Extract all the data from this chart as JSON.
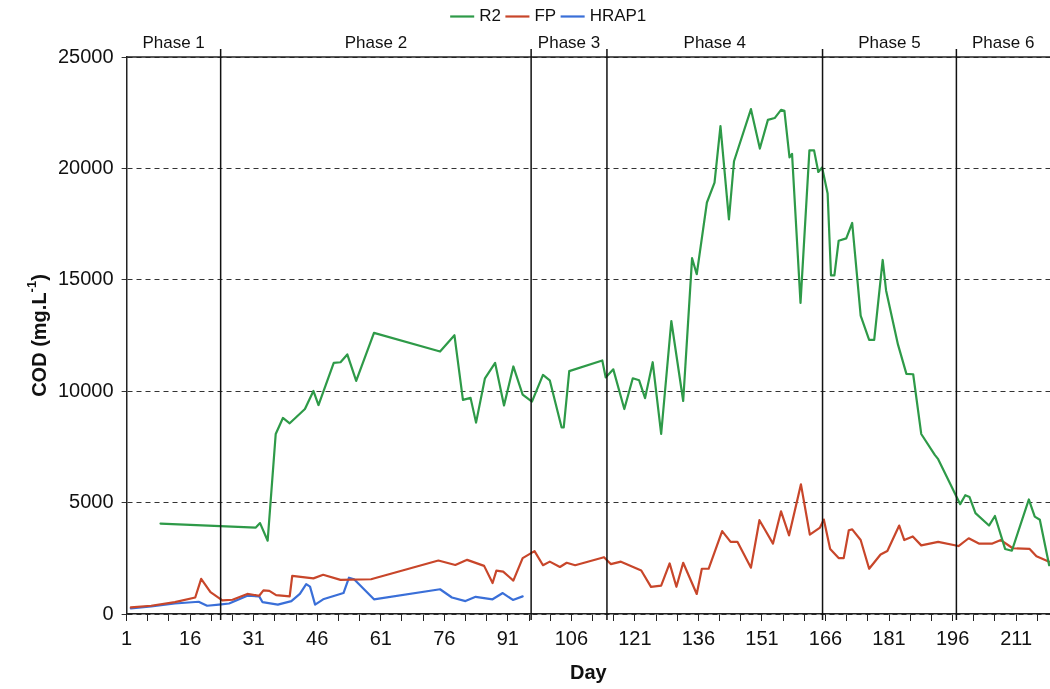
{
  "chart_data": {
    "type": "line",
    "xlabel": "Day",
    "ylabel": "COD (mg.L$^{-1}$)",
    "xlim": [
      1,
      219
    ],
    "ylim": [
      0,
      25000
    ],
    "yticks": [
      0,
      5000,
      10000,
      15000,
      20000,
      25000
    ],
    "xticks": [
      1,
      {
        "value": 6,
        "label": null
      },
      {
        "value": 11,
        "label": null
      },
      16,
      {
        "value": 21,
        "label": null
      },
      {
        "value": 26,
        "label": null
      },
      31,
      {
        "value": 36,
        "label": null
      },
      {
        "value": 41,
        "label": null
      },
      46,
      {
        "value": 51,
        "label": null
      },
      {
        "value": 56,
        "label": null
      },
      61,
      {
        "value": 66,
        "label": null
      },
      {
        "value": 71,
        "label": null
      },
      76,
      {
        "value": 81,
        "label": null
      },
      {
        "value": 86,
        "label": null
      },
      91,
      {
        "value": 96,
        "label": null
      },
      {
        "value": 101,
        "label": null
      },
      106,
      {
        "value": 111,
        "label": null
      },
      {
        "value": 116,
        "label": null
      },
      121,
      {
        "value": 126,
        "label": null
      },
      {
        "value": 131,
        "label": null
      },
      136,
      {
        "value": 141,
        "label": null
      },
      {
        "value": 146,
        "label": null
      },
      151,
      {
        "value": 156,
        "label": null
      },
      {
        "value": 161,
        "label": null
      },
      166,
      {
        "value": 171,
        "label": null
      },
      {
        "value": 176,
        "label": null
      },
      181,
      {
        "value": 186,
        "label": null
      },
      {
        "value": 191,
        "label": null
      },
      196,
      {
        "value": 201,
        "label": null
      },
      {
        "value": 206,
        "label": null
      },
      211,
      {
        "value": 216,
        "label": null
      }
    ],
    "grid": "y",
    "legend": "top",
    "marker": "none",
    "line_style": "solid",
    "ref_lines": [
      {
        "axis": "x",
        "value": 23.2
      },
      {
        "axis": "x",
        "value": 96.5
      },
      {
        "axis": "x",
        "value": 114.4
      },
      {
        "axis": "x",
        "value": 165.3
      },
      {
        "axis": "x",
        "value": 196.9
      }
    ],
    "annotations": [
      "Phase 1",
      "Phase 2",
      "Phase 3",
      "Phase 4",
      "Phase 5",
      "Phase 6"
    ],
    "series": [
      {
        "name": "R2",
        "color": "#2e9a48",
        "x": [
          9,
          31.5,
          32.5,
          34.3,
          36.2,
          37.9,
          39.5,
          43.1,
          45.1,
          46.3,
          49.9,
          51.5,
          53.1,
          55.2,
          59.4,
          75,
          78.4,
          80.4,
          82.2,
          83.5,
          85.6,
          88,
          90.1,
          92.3,
          94.5,
          96.7,
          99.3,
          100.9,
          103.7,
          104.2,
          105.5,
          113.3,
          114.1,
          115.9,
          118.5,
          120.5,
          122,
          123.4,
          125.2,
          127.2,
          129.6,
          132.4,
          134.5,
          135.6,
          138,
          139.8,
          141.2,
          143.2,
          144.4,
          148.4,
          150.5,
          152.4,
          154,
          155.5,
          156.3,
          157.5,
          158.1,
          160.1,
          162.2,
          163.3,
          164.3,
          165.2,
          166.5,
          167.3,
          168.1,
          169.1,
          170.9,
          172.3,
          174.3,
          176.3,
          177.5,
          179.5,
          180.3,
          183.1,
          185.1,
          186.7,
          188.6,
          191.8,
          192.6,
          197.8,
          199,
          200,
          201.4,
          204.6,
          206,
          208.4,
          210,
          214,
          215.4,
          216.6,
          218.8
        ],
        "values": [
          4060,
          3880,
          4080,
          3290,
          8080,
          8800,
          8560,
          9200,
          10010,
          9380,
          11270,
          11300,
          11650,
          10460,
          12620,
          11780,
          12510,
          9610,
          9700,
          8590,
          10580,
          11270,
          9360,
          11110,
          9850,
          9530,
          10730,
          10490,
          8370,
          8370,
          10900,
          11380,
          10620,
          10980,
          9200,
          10580,
          10490,
          9690,
          11300,
          8080,
          13150,
          9560,
          15970,
          15250,
          18470,
          19360,
          21900,
          17710,
          20320,
          22660,
          20890,
          22180,
          22260,
          22630,
          22580,
          20490,
          20650,
          13960,
          20810,
          20810,
          19840,
          20040,
          18870,
          15200,
          15200,
          16750,
          16860,
          17550,
          13390,
          12300,
          12300,
          15890,
          14520,
          12100,
          10780,
          10760,
          8080,
          7140,
          6950,
          4930,
          5330,
          5250,
          4530,
          3970,
          4400,
          2920,
          2840,
          5140,
          4370,
          4230,
          2190
        ]
      },
      {
        "name": "FP",
        "color": "#c8462a",
        "x": [
          2,
          6.8,
          12.4,
          17.2,
          18.6,
          20.8,
          23.6,
          26,
          29.5,
          32.3,
          33.3,
          34.7,
          36.3,
          39.5,
          40.1,
          45.1,
          47.4,
          51.5,
          58.7,
          74.6,
          78.6,
          81.4,
          85.4,
          87.4,
          88.3,
          89.9,
          92.3,
          94.5,
          97.3,
          99.3,
          100.9,
          103.3,
          104.9,
          106.9,
          113.7,
          115.3,
          117.7,
          122.5,
          124.8,
          127.2,
          129.2,
          130.8,
          132.4,
          135.6,
          136.8,
          138.4,
          141.6,
          143.6,
          145.2,
          148.4,
          150.4,
          153.6,
          155.5,
          157.4,
          160.2,
          162.3,
          164.7,
          165.6,
          167.1,
          169.1,
          170.3,
          171.5,
          172.3,
          174.3,
          176.3,
          179,
          180.6,
          183.4,
          184.6,
          186.6,
          188.6,
          192.6,
          197.4,
          199.8,
          202.2,
          205.4,
          207.4,
          210.2,
          214.2,
          215.8,
          218.8
        ],
        "values": [
          300,
          370,
          530,
          740,
          1580,
          980,
          610,
          640,
          900,
          820,
          1060,
          1040,
          850,
          790,
          1710,
          1600,
          1760,
          1530,
          1560,
          2400,
          2200,
          2430,
          2160,
          1390,
          1950,
          1900,
          1500,
          2510,
          2820,
          2190,
          2350,
          2110,
          2300,
          2190,
          2550,
          2240,
          2350,
          1950,
          1220,
          1270,
          2270,
          1220,
          2300,
          900,
          2030,
          2030,
          3720,
          3240,
          3240,
          2080,
          4210,
          3160,
          4610,
          3530,
          5820,
          3560,
          3880,
          4240,
          2920,
          2510,
          2510,
          3760,
          3800,
          3320,
          2030,
          2670,
          2830,
          3970,
          3320,
          3480,
          3080,
          3240,
          3050,
          3400,
          3160,
          3160,
          3320,
          2950,
          2920,
          2590,
          2350
        ]
      },
      {
        "name": "HRAP1",
        "color": "#3a6fd8",
        "x": [
          2,
          6.8,
          12.4,
          18,
          20,
          22.8,
          25.2,
          29.5,
          32.3,
          33.1,
          36.7,
          39.9,
          41.9,
          43.4,
          44.3,
          45.5,
          47.4,
          52.2,
          53.5,
          54.7,
          59.4,
          75,
          77.8,
          81,
          83.4,
          87.4,
          89.8,
          92.2,
          94.5
        ],
        "values": [
          250,
          340,
          470,
          550,
          370,
          420,
          470,
          820,
          790,
          530,
          420,
          580,
          900,
          1340,
          1230,
          420,
          660,
          940,
          1630,
          1560,
          660,
          1110,
          740,
          580,
          770,
          660,
          940,
          630,
          790
        ]
      }
    ]
  }
}
